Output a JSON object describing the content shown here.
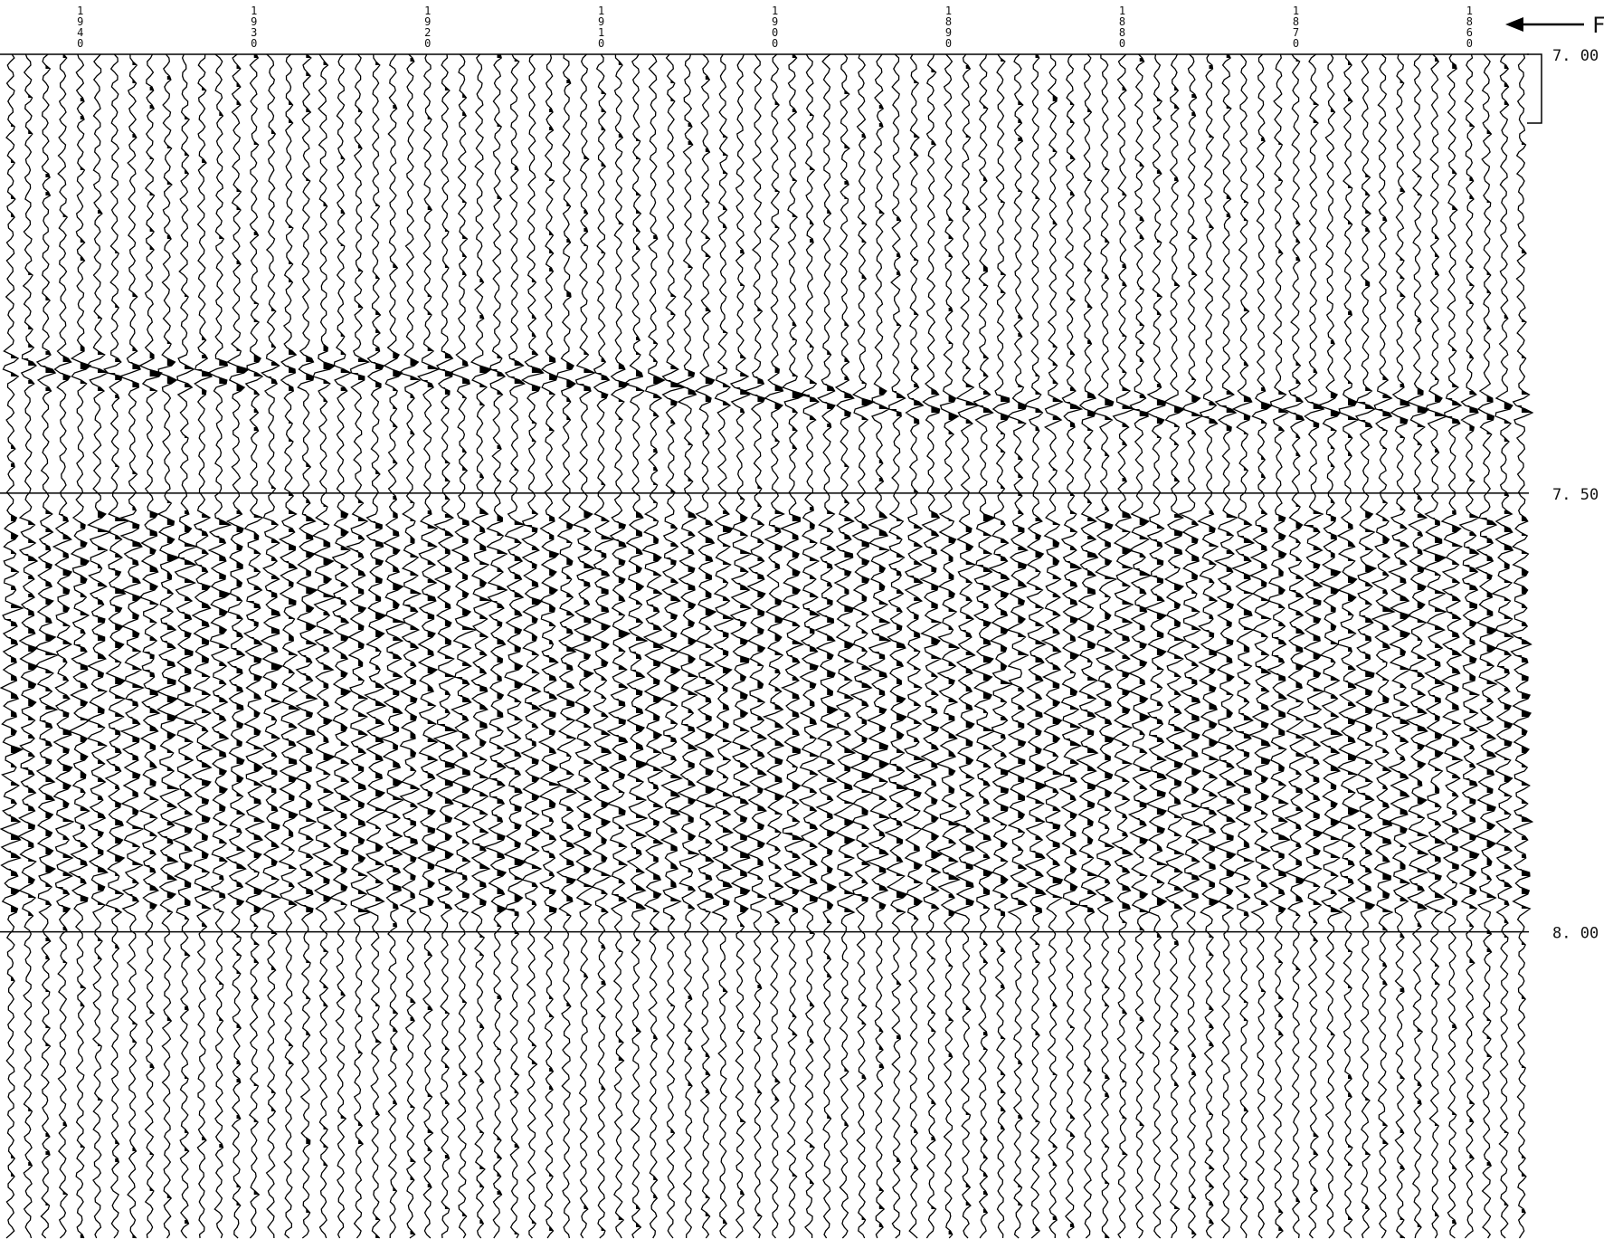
{
  "chart_data": {
    "type": "seismic-section",
    "title": "",
    "xlabel": "",
    "ylabel": "",
    "x_tick_labels": [
      "1940",
      "1930",
      "1920",
      "1910",
      "1900",
      "1890",
      "1880",
      "1870",
      "1860"
    ],
    "x_tick_values": [
      1940,
      1930,
      1920,
      1910,
      1900,
      1890,
      1880,
      1870,
      1860
    ],
    "x_range": [
      1944,
      1857
    ],
    "trace_step": 1,
    "y_tick_labels": [
      "7. 00",
      "7. 50",
      "8. 00"
    ],
    "y_tick_values": [
      7.0,
      7.5,
      8.0
    ],
    "ylim": [
      7.0,
      8.35
    ],
    "direction_label": "F",
    "reflector": {
      "description_points": [
        {
          "x": 1944,
          "t": 7.355
        },
        {
          "x": 1935,
          "t": 7.365
        },
        {
          "x": 1925,
          "t": 7.36
        },
        {
          "x": 1915,
          "t": 7.365
        },
        {
          "x": 1905,
          "t": 7.38
        },
        {
          "x": 1895,
          "t": 7.395
        },
        {
          "x": 1885,
          "t": 7.405
        },
        {
          "x": 1875,
          "t": 7.405
        },
        {
          "x": 1865,
          "t": 7.405
        },
        {
          "x": 1857,
          "t": 7.405
        }
      ]
    },
    "colors": {
      "trace": "#000000",
      "background": "#ffffff",
      "timing_line": "#000000"
    }
  }
}
